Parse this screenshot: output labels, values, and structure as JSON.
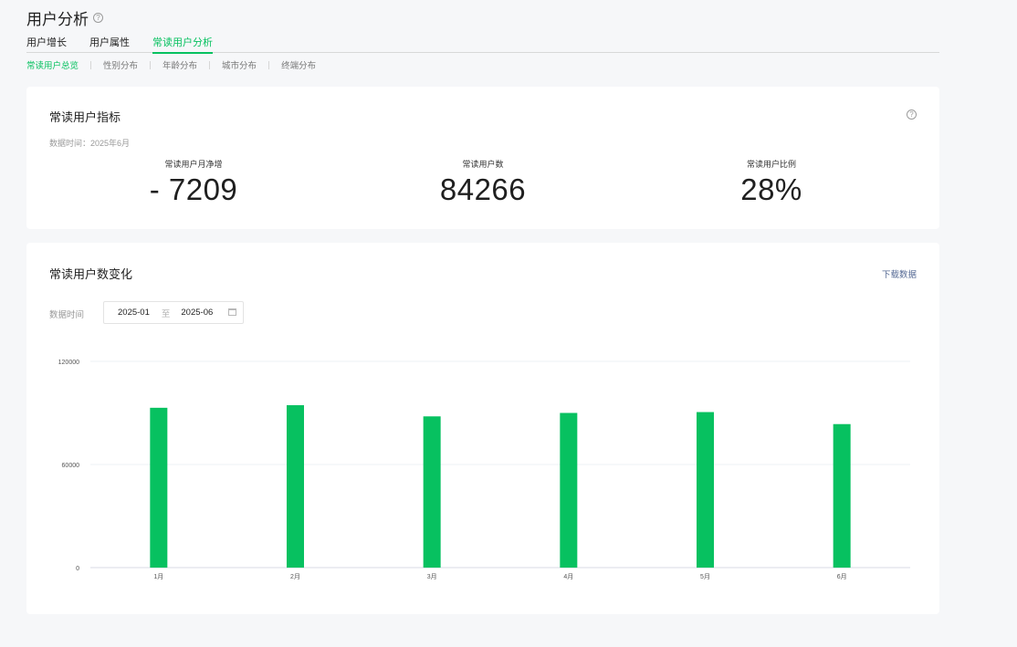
{
  "page": {
    "title": "用户分析"
  },
  "tabs": [
    "用户增长",
    "用户属性",
    "常读用户分析"
  ],
  "active_tab": 2,
  "subtabs": [
    "常读用户总览",
    "性别分布",
    "年龄分布",
    "城市分布",
    "终端分布"
  ],
  "active_subtab": 0,
  "metrics_card": {
    "title": "常读用户指标",
    "data_time": "数据时间：2025年6月",
    "metrics": [
      {
        "label": "常读用户月净增",
        "value": "- 7209"
      },
      {
        "label": "常读用户数",
        "value": "84266"
      },
      {
        "label": "常读用户比例",
        "value": "28%"
      }
    ]
  },
  "trend_card": {
    "title": "常读用户数变化",
    "download_label": "下载数据",
    "range_label": "数据时间",
    "range_start": "2025-01",
    "range_to": "至",
    "range_end": "2025-06"
  },
  "colors": {
    "accent": "#07c160",
    "link": "#576b95"
  },
  "chart_data": {
    "type": "bar",
    "categories": [
      "1月",
      "2月",
      "3月",
      "4月",
      "5月",
      "6月"
    ],
    "values": [
      93000,
      94500,
      88000,
      90000,
      90500,
      83500
    ],
    "yticks": [
      0,
      60000,
      120000
    ],
    "ylim": [
      0,
      120000
    ],
    "grid": true,
    "color": "#07c160"
  }
}
